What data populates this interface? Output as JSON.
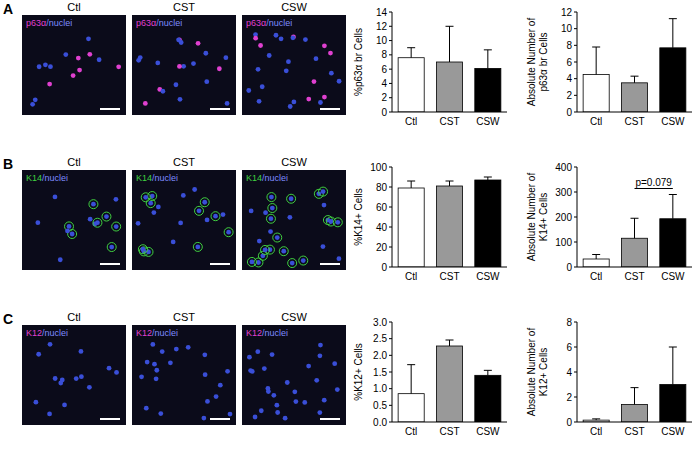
{
  "chart_data": [
    {
      "type": "bar",
      "y_label": "%p63α br Cells",
      "categories": [
        "Ctl",
        "CST",
        "CSW"
      ],
      "values": [
        7.6,
        7.0,
        6.1
      ],
      "errors": [
        1.4,
        5.0,
        2.6
      ],
      "colors": [
        "#ffffff",
        "#999999",
        "#000000"
      ],
      "ylim": [
        0,
        14
      ],
      "yticks": [
        0,
        2,
        4,
        6,
        8,
        10,
        12,
        14
      ]
    },
    {
      "type": "bar",
      "y_label": "Absolute Number of p63α br Cells",
      "categories": [
        "Ctl",
        "CST",
        "CSW"
      ],
      "values": [
        4.5,
        3.5,
        7.7
      ],
      "errors": [
        3.3,
        0.8,
        3.5
      ],
      "colors": [
        "#ffffff",
        "#999999",
        "#000000"
      ],
      "ylim": [
        0,
        12
      ],
      "yticks": [
        0,
        2,
        4,
        6,
        8,
        10,
        12
      ]
    },
    {
      "type": "bar",
      "y_label": "%K14+ Cells",
      "categories": [
        "Ctl",
        "CST",
        "CSW"
      ],
      "values": [
        79,
        81,
        87
      ],
      "errors": [
        7,
        5,
        3
      ],
      "colors": [
        "#ffffff",
        "#999999",
        "#000000"
      ],
      "ylim": [
        0,
        100
      ],
      "yticks": [
        0,
        20,
        40,
        60,
        80,
        100
      ]
    },
    {
      "type": "bar",
      "y_label": "Absolute Number of K14+ Cells",
      "categories": [
        "Ctl",
        "CST",
        "CSW"
      ],
      "values": [
        32,
        115,
        193
      ],
      "errors": [
        18,
        80,
        97
      ],
      "colors": [
        "#ffffff",
        "#999999",
        "#000000"
      ],
      "ylim": [
        0,
        400
      ],
      "yticks": [
        0,
        100,
        200,
        300,
        400
      ],
      "annotations": [
        {
          "text": "p=0.079",
          "between": [
            "CST",
            "CSW"
          ]
        }
      ]
    },
    {
      "type": "bar",
      "y_label": "%K12+ Cells",
      "categories": [
        "Ctl",
        "CST",
        "CSW"
      ],
      "values": [
        0.85,
        2.28,
        1.4
      ],
      "errors": [
        0.87,
        0.18,
        0.15
      ],
      "colors": [
        "#ffffff",
        "#999999",
        "#000000"
      ],
      "ylim": [
        0,
        3
      ],
      "yticks": [
        {
          "value": 0,
          "label": "0.0"
        },
        {
          "value": 0.5,
          "label": "0.5"
        },
        {
          "value": 1,
          "label": "1.0"
        },
        {
          "value": 1.5,
          "label": "1.5"
        },
        {
          "value": 2,
          "label": "2.0"
        },
        {
          "value": 2.5,
          "label": "2.5"
        },
        {
          "value": 3,
          "label": "3.0"
        }
      ]
    },
    {
      "type": "bar",
      "y_label": "Absolute Number of K12+ Cells",
      "categories": [
        "Ctl",
        "CST",
        "CSW"
      ],
      "values": [
        0.15,
        1.4,
        3.0
      ],
      "errors": [
        0.1,
        1.35,
        3.0
      ],
      "colors": [
        "#ffffff",
        "#999999",
        "#000000"
      ],
      "ylim": [
        0,
        8
      ],
      "yticks": [
        0,
        2,
        4,
        6,
        8
      ]
    }
  ],
  "figure": {
    "panels": [
      {
        "letter": "A",
        "conditions": [
          "Ctl",
          "CST",
          "CSW"
        ],
        "stain": [
          "p63α",
          "/nuclei"
        ],
        "stain_color": "#e040d0"
      },
      {
        "letter": "B",
        "conditions": [
          "Ctl",
          "CST",
          "CSW"
        ],
        "stain": [
          "K14",
          "/nuclei"
        ],
        "stain_color": "#40d040"
      },
      {
        "letter": "C",
        "conditions": [
          "Ctl",
          "CST",
          "CSW"
        ],
        "stain": [
          "K12",
          "/nuclei"
        ],
        "stain_color": "#e040d0"
      }
    ]
  }
}
